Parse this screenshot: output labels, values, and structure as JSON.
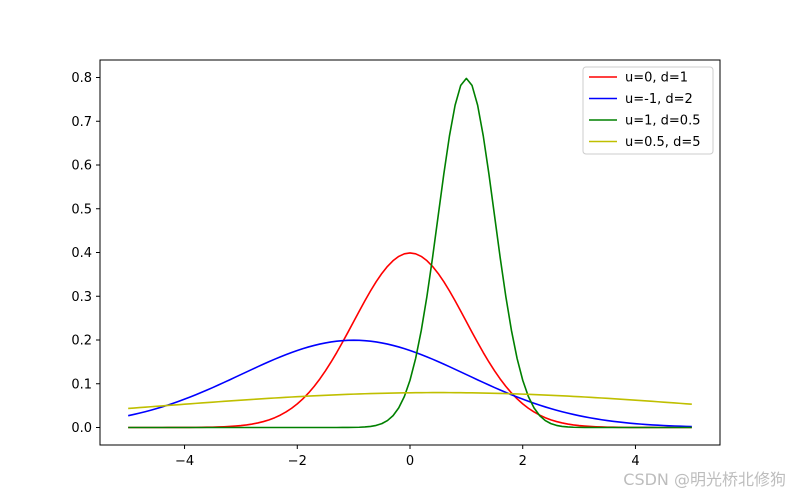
{
  "chart_data": {
    "type": "line",
    "title": "",
    "xlabel": "",
    "ylabel": "",
    "xlim": [
      -5.5,
      5.5
    ],
    "ylim": [
      -0.04,
      0.84
    ],
    "xticks": [
      -4,
      -2,
      0,
      2,
      4
    ],
    "xtick_labels": [
      "−4",
      "−2",
      "0",
      "2",
      "4"
    ],
    "yticks": [
      0.0,
      0.1,
      0.2,
      0.3,
      0.4,
      0.5,
      0.6,
      0.7,
      0.8
    ],
    "ytick_labels": [
      "0.0",
      "0.1",
      "0.2",
      "0.3",
      "0.4",
      "0.5",
      "0.6",
      "0.7",
      "0.8"
    ],
    "grid": false,
    "legend_position": "top-right",
    "x": [
      -5,
      -4.5,
      -4,
      -3.5,
      -3,
      -2.5,
      -2,
      -1.5,
      -1,
      -0.5,
      0,
      0.5,
      1,
      1.5,
      2,
      2.5,
      3,
      3.5,
      4,
      4.5,
      5
    ],
    "series": [
      {
        "name": "u=0, d=1",
        "color": "#ff0000",
        "values": [
          0.0,
          0.0,
          0.0001,
          0.0009,
          0.0044,
          0.0175,
          0.054,
          0.1295,
          0.242,
          0.3521,
          0.399,
          0.3521,
          0.242,
          0.1295,
          0.054,
          0.0175,
          0.0044,
          0.0009,
          0.0001,
          0.0,
          0.0
        ]
      },
      {
        "name": "u=-1, d=2",
        "color": "#0000ff",
        "values": [
          0.027,
          0.0431,
          0.0648,
          0.0913,
          0.121,
          0.1506,
          0.176,
          0.1933,
          0.1995,
          0.1933,
          0.176,
          0.1506,
          0.121,
          0.0913,
          0.0648,
          0.0431,
          0.027,
          0.0158,
          0.0088,
          0.0045,
          0.0022
        ]
      },
      {
        "name": "u=1, d=0.5",
        "color": "#008000",
        "values": [
          0.0,
          0.0,
          0.0,
          0.0,
          0.0,
          0.0,
          0.0,
          0.0,
          0.0003,
          0.0089,
          0.108,
          0.4839,
          0.7979,
          0.4839,
          0.108,
          0.0089,
          0.0003,
          0.0,
          0.0,
          0.0,
          0.0
        ]
      },
      {
        "name": "u=0.5, d=5",
        "color": "#bfbf00",
        "values": [
          0.0438,
          0.0484,
          0.0532,
          0.058,
          0.0627,
          0.0673,
          0.0714,
          0.0751,
          0.0782,
          0.0805,
          0.0793,
          0.0798,
          0.0793,
          0.0782,
          0.0766,
          0.0744,
          0.0718,
          0.0687,
          0.0652,
          0.0614,
          0.0538
        ]
      }
    ]
  },
  "watermark": "CSDN @明光桥北修狗"
}
